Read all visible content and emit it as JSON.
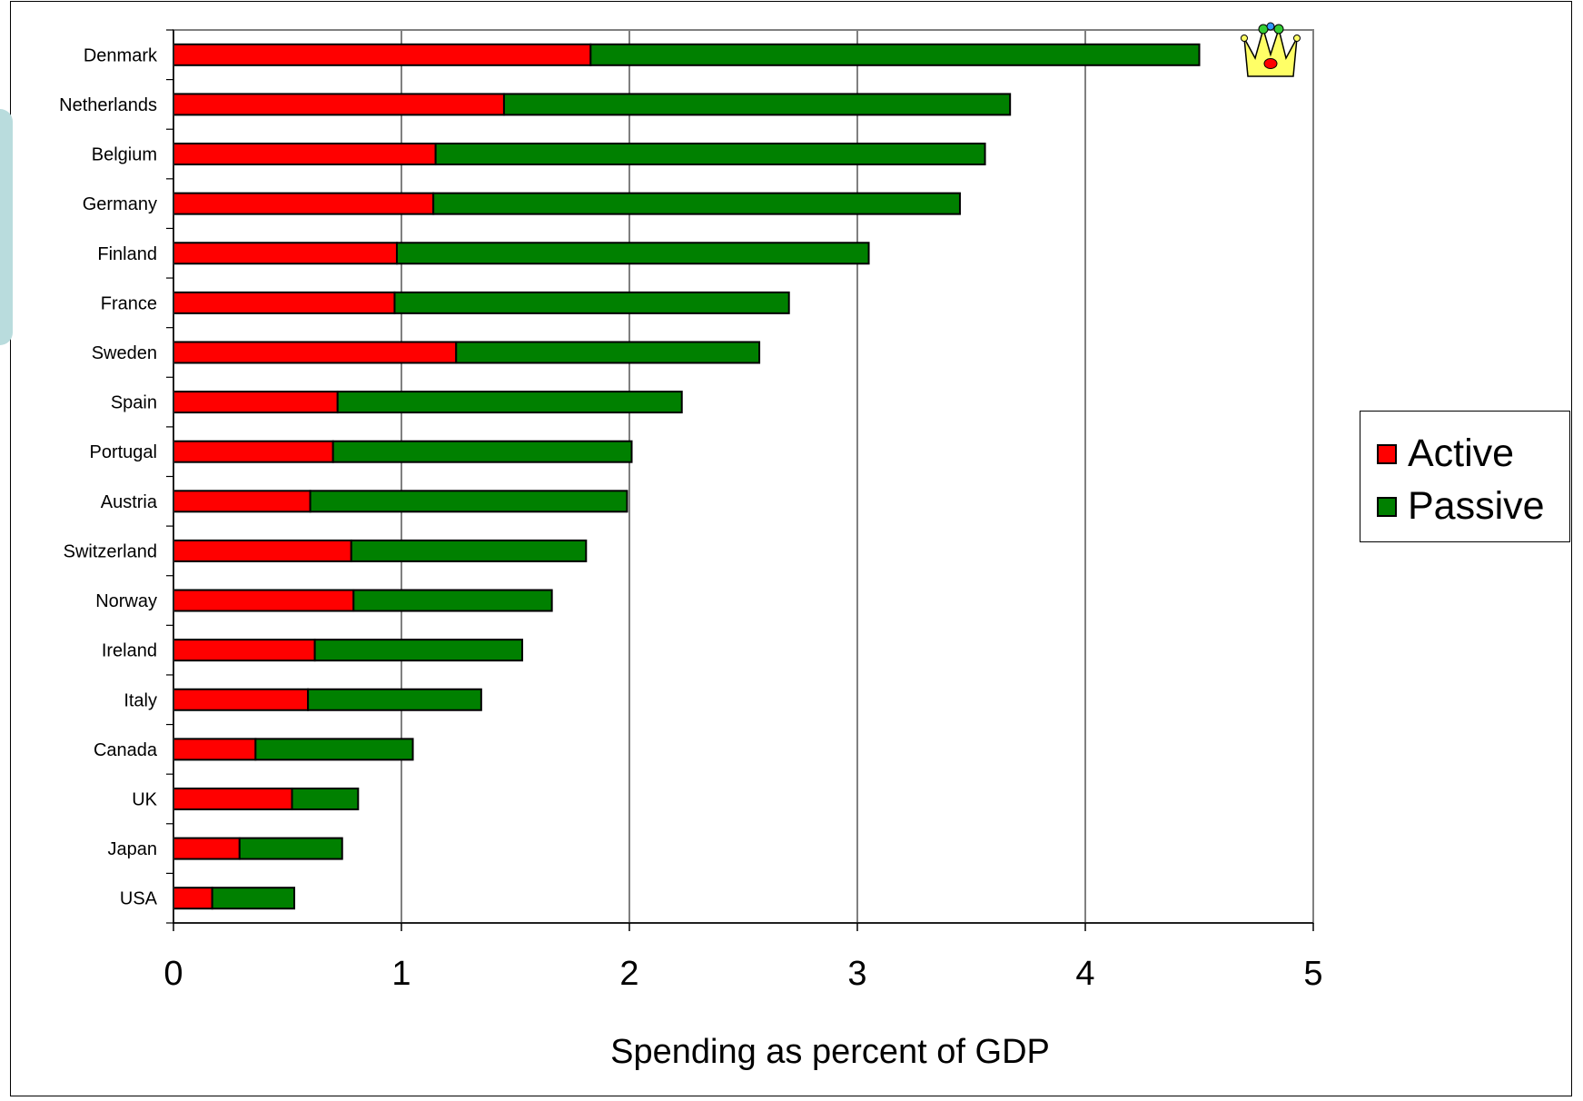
{
  "chart_data": {
    "type": "bar",
    "orientation": "horizontal",
    "stacked": true,
    "categories": [
      "Denmark",
      "Netherlands",
      "Belgium",
      "Germany",
      "Finland",
      "France",
      "Sweden",
      "Spain",
      "Portugal",
      "Austria",
      "Switzerland",
      "Norway",
      "Ireland",
      "Italy",
      "Canada",
      "UK",
      "Japan",
      "USA"
    ],
    "series": [
      {
        "name": "Active",
        "color": "#ff0000",
        "values": [
          1.83,
          1.45,
          1.15,
          1.14,
          0.98,
          0.97,
          1.24,
          0.72,
          0.7,
          0.6,
          0.78,
          0.79,
          0.62,
          0.59,
          0.36,
          0.52,
          0.29,
          0.17
        ]
      },
      {
        "name": "Passive",
        "color": "#008000",
        "values": [
          2.67,
          2.22,
          2.41,
          2.31,
          2.07,
          1.73,
          1.33,
          1.51,
          1.31,
          1.39,
          1.03,
          0.87,
          0.91,
          0.76,
          0.69,
          0.29,
          0.45,
          0.36
        ]
      }
    ],
    "xlim": [
      0,
      5
    ],
    "xticks": [
      "0",
      "1",
      "2",
      "3",
      "4",
      "5"
    ],
    "xlabel": "Spending as percent of GDP",
    "ylabel": "",
    "title": "",
    "grid": "vertical",
    "legend_position": "right"
  },
  "legend": {
    "active_label": "Active",
    "passive_label": "Passive"
  },
  "decor": {
    "crown_icon": "crown-icon",
    "gridline_color": "#000000",
    "plot_border_color": "#808080"
  }
}
